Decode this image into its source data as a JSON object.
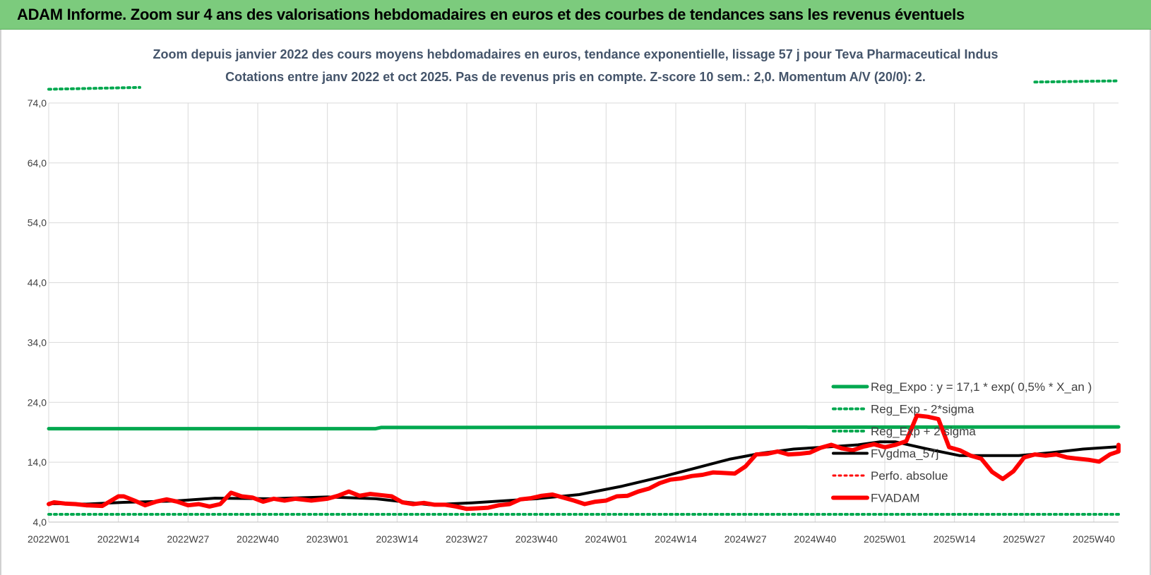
{
  "banner": {
    "title": "ADAM Informe. Zoom sur 4 ans des valorisations hebdomadaires en euros et des courbes de tendances sans les revenus éventuels"
  },
  "chart_data": {
    "type": "line",
    "title": "Zoom depuis janvier 2022 des cours moyens hebdomadaires en euros, tendance exponentielle, lissage 57 j pour Teva Pharmaceutical Indus",
    "subtitle": "Cotations entre janv 2022 et oct 2025. Pas de revenus pris en compte. Z-score 10 sem.: 2,0. Momentum A/V (20/0): 2.",
    "xlabel": "",
    "ylabel": "",
    "ylim": [
      4.0,
      74.0
    ],
    "yticks": [
      "74,0",
      "64,0",
      "54,0",
      "44,0",
      "34,0",
      "24,0",
      "14,0",
      "4,0"
    ],
    "ytick_values": [
      74,
      64,
      54,
      44,
      34,
      24,
      14,
      4
    ],
    "xlim": [
      1,
      196
    ],
    "xticks": [
      "2022W01",
      "2022W14",
      "2022W27",
      "2022W40",
      "2023W01",
      "2023W14",
      "2023W27",
      "2023W40",
      "2024W01",
      "2024W14",
      "2024W27",
      "2024W40",
      "2025W01",
      "2025W14",
      "2025W27",
      "2025W40"
    ],
    "xtick_positions": [
      1,
      14,
      27,
      40,
      53,
      66,
      79,
      92,
      105,
      118,
      131,
      144,
      157,
      170,
      183,
      196
    ],
    "grid": true,
    "legend_position": "bottom-right",
    "colors": {
      "reg_expo": "#00a84f",
      "bands": "#00a84f",
      "perfo": "#ff0000",
      "fvgdma": "#000000",
      "fvadam": "#ff0000",
      "grid": "#d9d9d9",
      "axis_text": "#404040",
      "title_text": "#44546a"
    },
    "series": [
      {
        "name": "Reg_Expo : y = 17,1 * exp( 0,5% * X_an )",
        "style": "solid",
        "color": "#00a84f",
        "points": [
          [
            1,
            19.6
          ],
          [
            62,
            19.6
          ],
          [
            63,
            19.8
          ],
          [
            202,
            19.9
          ]
        ]
      },
      {
        "name": "Reg_Exp - 2*sigma",
        "style": "dotted",
        "color": "#00a84f",
        "points": [
          [
            1,
            5.3
          ],
          [
            202,
            5.3
          ]
        ]
      },
      {
        "name": "Reg_Exp + 2 sigma",
        "style": "dotted",
        "color": "#00a84f",
        "segments": [
          [
            [
              1,
              76.3
            ],
            [
              18,
              76.6
            ]
          ],
          [
            [
              185,
              77.5
            ],
            [
              202,
              77.7
            ]
          ]
        ]
      },
      {
        "name": "FVgdma_57j",
        "style": "solid",
        "color": "#000000",
        "points": [
          [
            1,
            7.1
          ],
          [
            8,
            7.0
          ],
          [
            15,
            7.3
          ],
          [
            24,
            7.5
          ],
          [
            32,
            8.0
          ],
          [
            42,
            7.9
          ],
          [
            53,
            8.2
          ],
          [
            62,
            7.9
          ],
          [
            72,
            6.9
          ],
          [
            80,
            7.2
          ],
          [
            92,
            7.9
          ],
          [
            100,
            8.6
          ],
          [
            108,
            10.0
          ],
          [
            116,
            11.7
          ],
          [
            122,
            13.1
          ],
          [
            128,
            14.5
          ],
          [
            134,
            15.5
          ],
          [
            140,
            16.2
          ],
          [
            147,
            16.6
          ],
          [
            152,
            16.9
          ],
          [
            156,
            17.4
          ],
          [
            159,
            17.4
          ],
          [
            165,
            16.2
          ],
          [
            171,
            15.1
          ],
          [
            176,
            15.1
          ],
          [
            182,
            15.1
          ],
          [
            188,
            15.6
          ],
          [
            194,
            16.2
          ],
          [
            202,
            16.6
          ]
        ]
      },
      {
        "name": "Perfo. absolue",
        "style": "dotted",
        "color": "#ff0000",
        "points": []
      },
      {
        "name": "FVADAM",
        "style": "solid",
        "color": "#ff0000",
        "points": [
          [
            1,
            7.0
          ],
          [
            2,
            7.3
          ],
          [
            4,
            7.1
          ],
          [
            6,
            7.0
          ],
          [
            8,
            6.8
          ],
          [
            11,
            6.7
          ],
          [
            14,
            8.3
          ],
          [
            15,
            8.3
          ],
          [
            17,
            7.6
          ],
          [
            19,
            6.8
          ],
          [
            21,
            7.4
          ],
          [
            23,
            7.8
          ],
          [
            25,
            7.4
          ],
          [
            27,
            6.8
          ],
          [
            29,
            7.0
          ],
          [
            31,
            6.6
          ],
          [
            33,
            7.0
          ],
          [
            35,
            8.9
          ],
          [
            37,
            8.3
          ],
          [
            39,
            8.1
          ],
          [
            41,
            7.4
          ],
          [
            43,
            7.9
          ],
          [
            45,
            7.6
          ],
          [
            47,
            7.9
          ],
          [
            50,
            7.6
          ],
          [
            53,
            7.9
          ],
          [
            55,
            8.4
          ],
          [
            57,
            9.1
          ],
          [
            59,
            8.4
          ],
          [
            61,
            8.7
          ],
          [
            63,
            8.5
          ],
          [
            65,
            8.3
          ],
          [
            67,
            7.3
          ],
          [
            69,
            7.0
          ],
          [
            71,
            7.2
          ],
          [
            73,
            6.9
          ],
          [
            75,
            6.9
          ],
          [
            77,
            6.6
          ],
          [
            79,
            6.2
          ],
          [
            81,
            6.3
          ],
          [
            83,
            6.4
          ],
          [
            85,
            6.8
          ],
          [
            87,
            7.0
          ],
          [
            89,
            7.8
          ],
          [
            91,
            8.0
          ],
          [
            93,
            8.4
          ],
          [
            95,
            8.6
          ],
          [
            97,
            8.1
          ],
          [
            99,
            7.6
          ],
          [
            101,
            7.0
          ],
          [
            103,
            7.4
          ],
          [
            105,
            7.6
          ],
          [
            107,
            8.3
          ],
          [
            109,
            8.4
          ],
          [
            111,
            9.1
          ],
          [
            113,
            9.6
          ],
          [
            115,
            10.5
          ],
          [
            117,
            11.1
          ],
          [
            119,
            11.3
          ],
          [
            121,
            11.7
          ],
          [
            123,
            11.9
          ],
          [
            125,
            12.3
          ],
          [
            127,
            12.2
          ],
          [
            129,
            12.1
          ],
          [
            131,
            13.3
          ],
          [
            133,
            15.3
          ],
          [
            135,
            15.4
          ],
          [
            137,
            15.8
          ],
          [
            139,
            15.3
          ],
          [
            141,
            15.4
          ],
          [
            143,
            15.6
          ],
          [
            145,
            16.4
          ],
          [
            147,
            16.9
          ],
          [
            149,
            16.3
          ],
          [
            151,
            16.0
          ],
          [
            153,
            16.6
          ],
          [
            155,
            17.0
          ],
          [
            157,
            16.5
          ],
          [
            159,
            16.9
          ],
          [
            161,
            17.5
          ],
          [
            163,
            21.8
          ],
          [
            165,
            21.6
          ],
          [
            167,
            21.2
          ],
          [
            169,
            16.5
          ],
          [
            171,
            16.0
          ],
          [
            173,
            15.1
          ],
          [
            175,
            14.6
          ],
          [
            177,
            12.4
          ],
          [
            179,
            11.2
          ],
          [
            181,
            12.5
          ],
          [
            183,
            14.8
          ],
          [
            185,
            15.3
          ],
          [
            187,
            15.1
          ],
          [
            189,
            15.3
          ],
          [
            191,
            14.8
          ],
          [
            193,
            14.6
          ],
          [
            195,
            14.4
          ],
          [
            197,
            14.1
          ],
          [
            199,
            15.3
          ],
          [
            201,
            15.8
          ],
          [
            202,
            16.9
          ]
        ]
      }
    ]
  }
}
